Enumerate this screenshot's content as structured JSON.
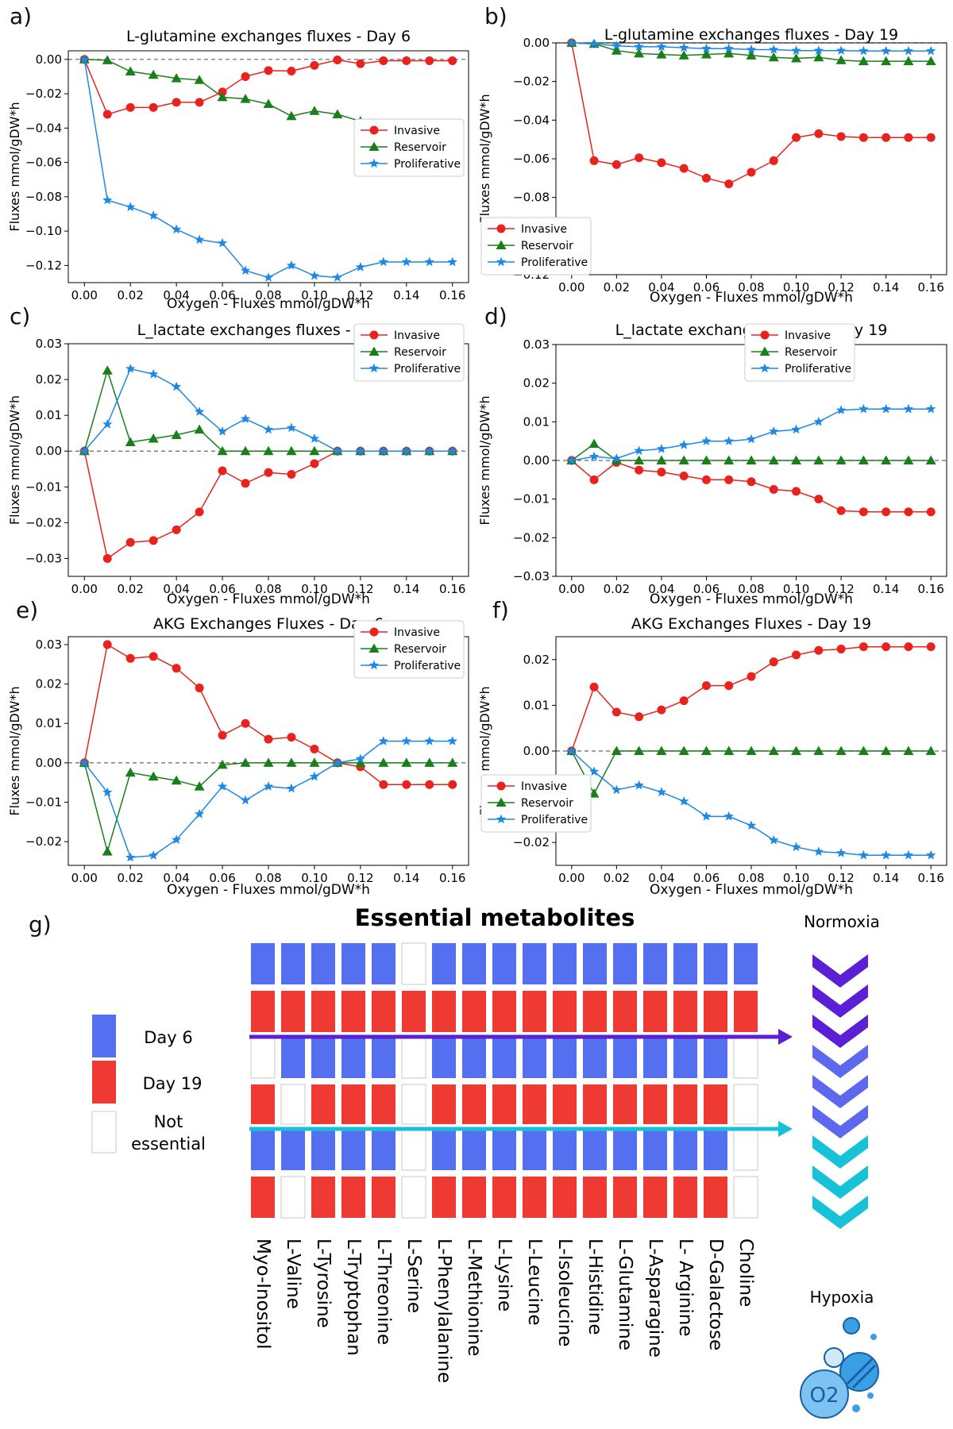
{
  "panel_letters": [
    "a)",
    "b)",
    "c)",
    "d)",
    "e)",
    "f)",
    "g)"
  ],
  "chart_data": [
    {
      "type": "line",
      "title": "L-glutamine exchanges fluxes - Day 6",
      "xlabel": "Oxygen - Fluxes mmol/gDW*h",
      "ylabel": "Fluxes mmol/gDW*h",
      "xlim": [
        -0.007,
        0.167
      ],
      "ylim": [
        -0.13,
        0.005
      ],
      "xticks": [
        "0.00",
        "0.02",
        "0.04",
        "0.06",
        "0.08",
        "0.10",
        "0.12",
        "0.14",
        "0.16"
      ],
      "yticks": [
        0.0,
        -0.02,
        -0.04,
        -0.06,
        -0.08,
        -0.1,
        -0.12
      ],
      "ytick_labels": [
        "0.00",
        "−0.02",
        "−0.04",
        "−0.06",
        "−0.08",
        "−0.10",
        "−0.12"
      ],
      "legend_position": "center-right",
      "x": [
        0,
        0.01,
        0.02,
        0.03,
        0.04,
        0.05,
        0.06,
        0.07,
        0.08,
        0.09,
        0.1,
        0.11,
        0.12,
        0.13,
        0.14,
        0.15,
        0.16
      ],
      "series": [
        {
          "name": "Invasive",
          "color": "#e8231e",
          "marker": "circle",
          "values": [
            0,
            -0.032,
            -0.028,
            -0.028,
            -0.025,
            -0.025,
            -0.019,
            -0.01,
            -0.0065,
            -0.0068,
            -0.0035,
            -0.0003,
            -0.0025,
            -0.0008,
            -0.0008,
            -0.0008,
            -0.0008
          ]
        },
        {
          "name": "Reservoir",
          "color": "#1a7f1a",
          "marker": "triangle",
          "values": [
            0,
            -0.0005,
            -0.007,
            -0.009,
            -0.011,
            -0.012,
            -0.022,
            -0.023,
            -0.026,
            -0.033,
            -0.03,
            -0.032,
            -0.036,
            -0.041,
            -0.041,
            -0.041,
            -0.041
          ]
        },
        {
          "name": "Proliferative",
          "color": "#1e88e5",
          "marker": "star",
          "values": [
            0,
            -0.082,
            -0.086,
            -0.091,
            -0.099,
            -0.105,
            -0.107,
            -0.123,
            -0.127,
            -0.12,
            -0.126,
            -0.127,
            -0.121,
            -0.118,
            -0.118,
            -0.118,
            -0.118
          ]
        }
      ]
    },
    {
      "type": "line",
      "title": "L-glutamine exchanges fluxes - Day 19",
      "xlabel": "Oxygen - Fluxes mmol/gDW*h",
      "ylabel": "Fluxes mmol/gDW*h",
      "xlim": [
        -0.007,
        0.167
      ],
      "ylim": [
        -0.12,
        0.0
      ],
      "xticks": [
        "0.00",
        "0.02",
        "0.04",
        "0.06",
        "0.08",
        "0.10",
        "0.12",
        "0.14",
        "0.16"
      ],
      "yticks": [
        0.0,
        -0.02,
        -0.04,
        -0.06,
        -0.08,
        -0.1,
        -0.12
      ],
      "ytick_labels": [
        "0.00",
        "−0.02",
        "−0.04",
        "−0.06",
        "−0.08",
        "−0.10",
        "−0.12"
      ],
      "legend_position": "lower-left",
      "x": [
        0,
        0.01,
        0.02,
        0.03,
        0.04,
        0.05,
        0.06,
        0.07,
        0.08,
        0.09,
        0.1,
        0.11,
        0.12,
        0.13,
        0.14,
        0.15,
        0.16
      ],
      "series": [
        {
          "name": "Invasive",
          "color": "#e8231e",
          "marker": "circle",
          "values": [
            0,
            -0.061,
            -0.063,
            -0.0595,
            -0.062,
            -0.065,
            -0.07,
            -0.073,
            -0.067,
            -0.061,
            -0.049,
            -0.047,
            -0.0485,
            -0.049,
            -0.049,
            -0.049,
            -0.049
          ]
        },
        {
          "name": "Reservoir",
          "color": "#1a7f1a",
          "marker": "triangle",
          "values": [
            0,
            -0.0005,
            -0.004,
            -0.0055,
            -0.006,
            -0.0065,
            -0.006,
            -0.0055,
            -0.0065,
            -0.0075,
            -0.008,
            -0.0075,
            -0.009,
            -0.0095,
            -0.0095,
            -0.0095,
            -0.0095
          ]
        },
        {
          "name": "Proliferative",
          "color": "#1e88e5",
          "marker": "star",
          "values": [
            0,
            -0.0005,
            -0.0015,
            -0.002,
            -0.002,
            -0.0025,
            -0.003,
            -0.003,
            -0.0035,
            -0.0035,
            -0.004,
            -0.004,
            -0.004,
            -0.0042,
            -0.0042,
            -0.0042,
            -0.0042
          ]
        }
      ]
    },
    {
      "type": "line",
      "title": "L_lactate exchanges fluxes - Day 6",
      "xlabel": "Oxygen - Fluxes mmol/gDW*h",
      "ylabel": "Fluxes mmol/gDW*h",
      "xlim": [
        -0.007,
        0.167
      ],
      "ylim": [
        -0.035,
        0.03
      ],
      "xticks": [
        "0.00",
        "0.02",
        "0.04",
        "0.06",
        "0.08",
        "0.10",
        "0.12",
        "0.14",
        "0.16"
      ],
      "yticks": [
        0.03,
        0.02,
        0.01,
        0.0,
        -0.01,
        -0.02,
        -0.03
      ],
      "ytick_labels": [
        "0.03",
        "0.02",
        "0.01",
        "0.00",
        "−0.01",
        "−0.02",
        "−0.03"
      ],
      "legend_position": "top-right",
      "x": [
        0,
        0.01,
        0.02,
        0.03,
        0.04,
        0.05,
        0.06,
        0.07,
        0.08,
        0.09,
        0.1,
        0.11,
        0.12,
        0.13,
        0.14,
        0.15,
        0.16
      ],
      "series": [
        {
          "name": "Invasive",
          "color": "#e8231e",
          "marker": "circle",
          "values": [
            0,
            -0.03,
            -0.0255,
            -0.025,
            -0.022,
            -0.017,
            -0.0055,
            -0.009,
            -0.006,
            -0.0065,
            -0.0035,
            0,
            0,
            0,
            0,
            0,
            0
          ]
        },
        {
          "name": "Reservoir",
          "color": "#1a7f1a",
          "marker": "triangle",
          "values": [
            0,
            0.0225,
            0.0025,
            0.0035,
            0.0045,
            0.006,
            0,
            0,
            0,
            0,
            0,
            0,
            0,
            0,
            0,
            0,
            0
          ]
        },
        {
          "name": "Proliferative",
          "color": "#1e88e5",
          "marker": "star",
          "values": [
            0,
            0.0075,
            0.023,
            0.0215,
            0.018,
            0.011,
            0.0055,
            0.009,
            0.006,
            0.0065,
            0.0035,
            0,
            0,
            0,
            0,
            0,
            0
          ]
        }
      ]
    },
    {
      "type": "line",
      "title": "L_lactate exchanges fluxes - Day 19",
      "xlabel": "Oxygen - Fluxes mmol/gDW*h",
      "ylabel": "Fluxes mmol/gDW*h",
      "xlim": [
        -0.007,
        0.167
      ],
      "ylim": [
        -0.03,
        0.03
      ],
      "xticks": [
        "0.00",
        "0.02",
        "0.04",
        "0.06",
        "0.08",
        "0.10",
        "0.12",
        "0.14",
        "0.16"
      ],
      "yticks": [
        0.03,
        0.02,
        0.01,
        0.0,
        -0.01,
        -0.02,
        -0.03
      ],
      "ytick_labels": [
        "0.03",
        "0.02",
        "0.01",
        "0.00",
        "−0.01",
        "−0.02",
        "−0.03"
      ],
      "legend_position": "top-right",
      "x": [
        0,
        0.01,
        0.02,
        0.03,
        0.04,
        0.05,
        0.06,
        0.07,
        0.08,
        0.09,
        0.1,
        0.11,
        0.12,
        0.13,
        0.14,
        0.15,
        0.16
      ],
      "series": [
        {
          "name": "Invasive",
          "color": "#e8231e",
          "marker": "circle",
          "values": [
            0,
            -0.005,
            -0.0005,
            -0.0025,
            -0.003,
            -0.004,
            -0.005,
            -0.005,
            -0.0055,
            -0.0075,
            -0.008,
            -0.01,
            -0.013,
            -0.0133,
            -0.0133,
            -0.0133,
            -0.0133
          ]
        },
        {
          "name": "Reservoir",
          "color": "#1a7f1a",
          "marker": "triangle",
          "values": [
            0,
            0.0043,
            0,
            0,
            0,
            0,
            0,
            0,
            0,
            0,
            0,
            0,
            0,
            0,
            0,
            0,
            0
          ]
        },
        {
          "name": "Proliferative",
          "color": "#1e88e5",
          "marker": "star",
          "values": [
            0,
            0.001,
            0.0005,
            0.0025,
            0.003,
            0.004,
            0.005,
            0.005,
            0.0055,
            0.0075,
            0.008,
            0.01,
            0.013,
            0.0133,
            0.0133,
            0.0133,
            0.0133
          ]
        }
      ]
    },
    {
      "type": "line",
      "title": "AKG Exchanges Fluxes - Day 6",
      "xlabel": "Oxygen - Fluxes mmol/gDW*h",
      "ylabel": "Fluxes mmol/gDW*h",
      "xlim": [
        -0.007,
        0.167
      ],
      "ylim": [
        -0.026,
        0.032
      ],
      "xticks": [
        "0.00",
        "0.02",
        "0.04",
        "0.06",
        "0.08",
        "0.10",
        "0.12",
        "0.14",
        "0.16"
      ],
      "yticks": [
        0.03,
        0.02,
        0.01,
        0.0,
        -0.01,
        -0.02
      ],
      "ytick_labels": [
        "0.03",
        "0.02",
        "0.01",
        "0.00",
        "−0.01",
        "−0.02"
      ],
      "legend_position": "top-right",
      "x": [
        0,
        0.01,
        0.02,
        0.03,
        0.04,
        0.05,
        0.06,
        0.07,
        0.08,
        0.09,
        0.1,
        0.11,
        0.12,
        0.13,
        0.14,
        0.15,
        0.16
      ],
      "series": [
        {
          "name": "Invasive",
          "color": "#e8231e",
          "marker": "circle",
          "values": [
            0,
            0.03,
            0.0265,
            0.027,
            0.024,
            0.019,
            0.007,
            0.01,
            0.006,
            0.0065,
            0.0035,
            0,
            -0.001,
            -0.0055,
            -0.0055,
            -0.0055,
            -0.0055
          ]
        },
        {
          "name": "Reservoir",
          "color": "#1a7f1a",
          "marker": "triangle",
          "values": [
            0,
            -0.0225,
            -0.0025,
            -0.0035,
            -0.0045,
            -0.006,
            -0.0005,
            0,
            0,
            0,
            0,
            0,
            0,
            0,
            0,
            0,
            0
          ]
        },
        {
          "name": "Proliferative",
          "color": "#1e88e5",
          "marker": "star",
          "values": [
            0,
            -0.0075,
            -0.024,
            -0.0235,
            -0.0195,
            -0.013,
            -0.006,
            -0.0095,
            -0.006,
            -0.0065,
            -0.0035,
            0,
            0.001,
            0.0055,
            0.0055,
            0.0055,
            0.0055
          ]
        }
      ]
    },
    {
      "type": "line",
      "title": "AKG Exchanges Fluxes - Day 19",
      "xlabel": "Oxygen - Fluxes mmol/gDW*h",
      "ylabel": "Fluxes mmol/gDW*h",
      "xlim": [
        -0.007,
        0.167
      ],
      "ylim": [
        -0.025,
        0.025
      ],
      "xticks": [
        "0.00",
        "0.02",
        "0.04",
        "0.06",
        "0.08",
        "0.10",
        "0.12",
        "0.14",
        "0.16"
      ],
      "yticks": [
        0.02,
        0.01,
        0.0,
        -0.01,
        -0.02
      ],
      "ytick_labels": [
        "0.02",
        "0.01",
        "0.00",
        "−0.01",
        "−0.02"
      ],
      "legend_position": "lower-left",
      "x": [
        0,
        0.01,
        0.02,
        0.03,
        0.04,
        0.05,
        0.06,
        0.07,
        0.08,
        0.09,
        0.1,
        0.11,
        0.12,
        0.13,
        0.14,
        0.15,
        0.16
      ],
      "series": [
        {
          "name": "Invasive",
          "color": "#e8231e",
          "marker": "circle",
          "values": [
            0,
            0.014,
            0.0085,
            0.0075,
            0.009,
            0.011,
            0.0143,
            0.0143,
            0.0163,
            0.0195,
            0.021,
            0.022,
            0.0223,
            0.0228,
            0.0228,
            0.0228,
            0.0228
          ]
        },
        {
          "name": "Reservoir",
          "color": "#1a7f1a",
          "marker": "triangle",
          "values": [
            0,
            -0.0093,
            0,
            0,
            0,
            0,
            0,
            0,
            0,
            0,
            0,
            0,
            0,
            0,
            0,
            0,
            0
          ]
        },
        {
          "name": "Proliferative",
          "color": "#1e88e5",
          "marker": "star",
          "values": [
            0,
            -0.0045,
            -0.0085,
            -0.0075,
            -0.009,
            -0.011,
            -0.0143,
            -0.0143,
            -0.0163,
            -0.0195,
            -0.021,
            -0.022,
            -0.0223,
            -0.0228,
            -0.0228,
            -0.0228,
            -0.0228
          ]
        }
      ]
    },
    {
      "type": "heatmap",
      "title": "Essential metabolites",
      "metabolites": [
        "Myo-Inositol",
        "L-Valine",
        "L-Tyrosine",
        "L-Tryptophan",
        "L-Threonine",
        "L-Serine",
        "L-Phenylalanine",
        "L-Methionine",
        "L-Lysine",
        "L-Leucine",
        "L-Isoleucine",
        "L-Histidine",
        "L-Glutamine",
        "L-Asparagine",
        "L- Arginine",
        "D-Galactose",
        "Choline"
      ],
      "legend": [
        {
          "label": "Day 6",
          "color": "#5470f0"
        },
        {
          "label": "Day 19",
          "color": "#ee3a32"
        },
        {
          "label": "Not essential",
          "color": "#ffffff"
        }
      ],
      "rows": [
        [
          "B",
          "B",
          "B",
          "B",
          "B",
          "N",
          "B",
          "B",
          "B",
          "B",
          "B",
          "B",
          "B",
          "B",
          "B",
          "B",
          "B"
        ],
        [
          "R",
          "R",
          "R",
          "R",
          "R",
          "R",
          "R",
          "R",
          "R",
          "R",
          "R",
          "R",
          "R",
          "R",
          "R",
          "R",
          "R"
        ],
        [
          "N",
          "B",
          "B",
          "B",
          "B",
          "N",
          "B",
          "B",
          "B",
          "B",
          "B",
          "B",
          "B",
          "B",
          "B",
          "B",
          "N"
        ],
        [
          "R",
          "N",
          "R",
          "R",
          "R",
          "N",
          "R",
          "R",
          "R",
          "R",
          "R",
          "R",
          "R",
          "R",
          "R",
          "R",
          "N"
        ],
        [
          "B",
          "B",
          "B",
          "B",
          "B",
          "N",
          "B",
          "B",
          "B",
          "B",
          "B",
          "B",
          "B",
          "B",
          "B",
          "B",
          "N"
        ],
        [
          "R",
          "N",
          "R",
          "R",
          "R",
          "N",
          "R",
          "R",
          "R",
          "R",
          "R",
          "R",
          "R",
          "R",
          "R",
          "R",
          "N"
        ]
      ],
      "normoxia_label": "Normoxia",
      "hypoxia_label": "Hypoxia",
      "o2_label": "O2"
    }
  ]
}
